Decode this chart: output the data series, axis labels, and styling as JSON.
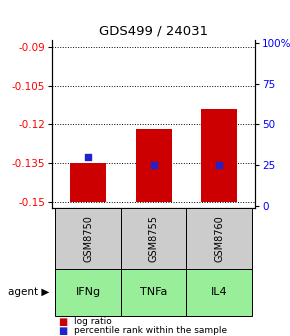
{
  "title": "GDS499 / 24031",
  "categories": [
    "GSM8750",
    "GSM8755",
    "GSM8760"
  ],
  "agents": [
    "IFNg",
    "TNFa",
    "IL4"
  ],
  "log_ratios": [
    -0.135,
    -0.122,
    -0.114
  ],
  "log_ratio_bottoms": [
    -0.15,
    -0.15,
    -0.15
  ],
  "percentile_ranks": [
    30,
    25,
    25
  ],
  "ylim_left": [
    -0.1525,
    -0.0875
  ],
  "ylim_right": [
    -1.5625,
    101.5625
  ],
  "yticks_left": [
    -0.09,
    -0.105,
    -0.12,
    -0.135,
    -0.15
  ],
  "yticks_right": [
    0,
    25,
    50,
    75,
    100
  ],
  "ytick_labels_right": [
    "0",
    "25",
    "50",
    "75",
    "100%"
  ],
  "bar_color": "#cc0000",
  "dot_color": "#2222cc",
  "agent_bg_color": "#99ee99",
  "gsm_bg_color": "#cccccc",
  "bar_width": 0.55,
  "legend_log_ratio": "log ratio",
  "legend_percentile": "percentile rank within the sample",
  "agent_label": "agent"
}
